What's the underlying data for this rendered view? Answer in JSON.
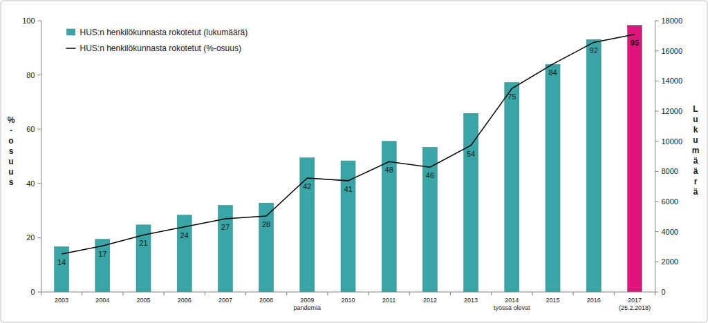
{
  "chart_data": {
    "type": "bar",
    "categories": [
      "2003",
      "2004",
      "2005",
      "2006",
      "2007",
      "2008",
      "2009\npandemia",
      "2010",
      "2011",
      "2012",
      "2013",
      "2014\ntyössä olevat",
      "2015",
      "2016",
      "2017\n(25.2.2018)"
    ],
    "y_label": "%-osuus",
    "y2_label": "Lukumäärä",
    "ylim": [
      0,
      100
    ],
    "yticks": [
      0,
      20,
      40,
      60,
      80,
      100
    ],
    "y2lim": [
      0,
      18000
    ],
    "y2ticks": [
      0,
      2000,
      4000,
      6000,
      8000,
      10000,
      12000,
      14000,
      16000,
      18000
    ],
    "grid": false,
    "legend": "upper left",
    "series": [
      {
        "name": "HUS:n henkilökunnasta rokotetut (lukumäärä)",
        "type": "bar",
        "axis": "y2",
        "color": "#3aa5a6",
        "colors": [
          "#3aa5a6",
          "#3aa5a6",
          "#3aa5a6",
          "#3aa5a6",
          "#3aa5a6",
          "#3aa5a6",
          "#3aa5a6",
          "#3aa5a6",
          "#3aa5a6",
          "#3aa5a6",
          "#3aa5a6",
          "#3aa5a6",
          "#3aa5a6",
          "#3aa5a6",
          "#e0147a"
        ],
        "values": [
          3000,
          3500,
          4450,
          5100,
          5750,
          5900,
          8900,
          8700,
          10000,
          9600,
          11850,
          13900,
          15100,
          16750,
          17700
        ]
      },
      {
        "name": "HUS:n henkilökunnasta rokotetut (%-osuus)",
        "type": "line",
        "color": "#000000",
        "data_labels": true,
        "values": [
          14,
          17,
          21,
          24,
          27,
          28,
          42,
          41,
          48,
          46,
          54,
          75,
          84,
          92,
          95
        ]
      }
    ]
  }
}
